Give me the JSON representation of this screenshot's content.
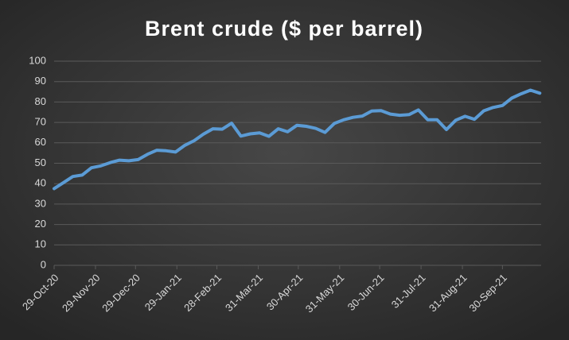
{
  "chart_data": {
    "type": "line",
    "title": "Brent crude ($ per barrel)",
    "x": [
      "2020-10-29",
      "2020-11-05",
      "2020-11-12",
      "2020-11-19",
      "2020-11-26",
      "2020-12-03",
      "2020-12-10",
      "2020-12-17",
      "2020-12-24",
      "2020-12-31",
      "2021-01-07",
      "2021-01-14",
      "2021-01-21",
      "2021-01-28",
      "2021-02-04",
      "2021-02-11",
      "2021-02-18",
      "2021-02-25",
      "2021-03-04",
      "2021-03-11",
      "2021-03-18",
      "2021-03-25",
      "2021-04-01",
      "2021-04-08",
      "2021-04-15",
      "2021-04-22",
      "2021-04-29",
      "2021-05-06",
      "2021-05-13",
      "2021-05-20",
      "2021-05-27",
      "2021-06-03",
      "2021-06-10",
      "2021-06-17",
      "2021-06-24",
      "2021-07-01",
      "2021-07-08",
      "2021-07-15",
      "2021-07-22",
      "2021-07-29",
      "2021-08-05",
      "2021-08-12",
      "2021-08-19",
      "2021-08-26",
      "2021-09-02",
      "2021-09-09",
      "2021-09-16",
      "2021-09-23",
      "2021-09-30",
      "2021-10-07",
      "2021-10-14",
      "2021-10-21",
      "2021-10-28"
    ],
    "values": [
      37.6,
      40.5,
      43.5,
      44.2,
      47.8,
      48.7,
      50.3,
      51.5,
      51.2,
      51.8,
      54.4,
      56.4,
      56.1,
      55.5,
      58.8,
      61.1,
      64.3,
      66.9,
      66.7,
      69.6,
      63.3,
      64.4,
      64.9,
      63.2,
      66.9,
      65.4,
      68.6,
      68.1,
      67.1,
      65.1,
      69.5,
      71.3,
      72.5,
      73.1,
      75.6,
      75.8,
      74.1,
      73.5,
      73.8,
      76.1,
      71.3,
      71.3,
      66.5,
      71.1,
      73.0,
      71.5,
      75.7,
      77.3,
      78.3,
      81.9,
      84.0,
      85.8,
      84.3
    ],
    "color": "#5b9bd5",
    "xlim": [
      "2020-10-29",
      "2021-10-29"
    ],
    "xticks": [
      {
        "value": "2020-10-29",
        "label": "29-Oct-20"
      },
      {
        "value": "2020-11-29",
        "label": "29-Nov-20"
      },
      {
        "value": "2020-12-29",
        "label": "29-Dec-20"
      },
      {
        "value": "2021-01-29",
        "label": "29-Jan-21"
      },
      {
        "value": "2021-02-28",
        "label": "28-Feb-21"
      },
      {
        "value": "2021-03-31",
        "label": "31-Mar-21"
      },
      {
        "value": "2021-04-30",
        "label": "30-Apr-21"
      },
      {
        "value": "2021-05-31",
        "label": "31-May-21"
      },
      {
        "value": "2021-06-30",
        "label": "30-Jun-21"
      },
      {
        "value": "2021-07-31",
        "label": "31-Jul-21"
      },
      {
        "value": "2021-08-31",
        "label": "31-Aug-21"
      },
      {
        "value": "2021-09-30",
        "label": "30-Sep-21"
      }
    ],
    "ylim": [
      0,
      100
    ],
    "yticks": [
      0,
      10,
      20,
      30,
      40,
      50,
      60,
      70,
      80,
      90,
      100
    ],
    "grid": true
  }
}
